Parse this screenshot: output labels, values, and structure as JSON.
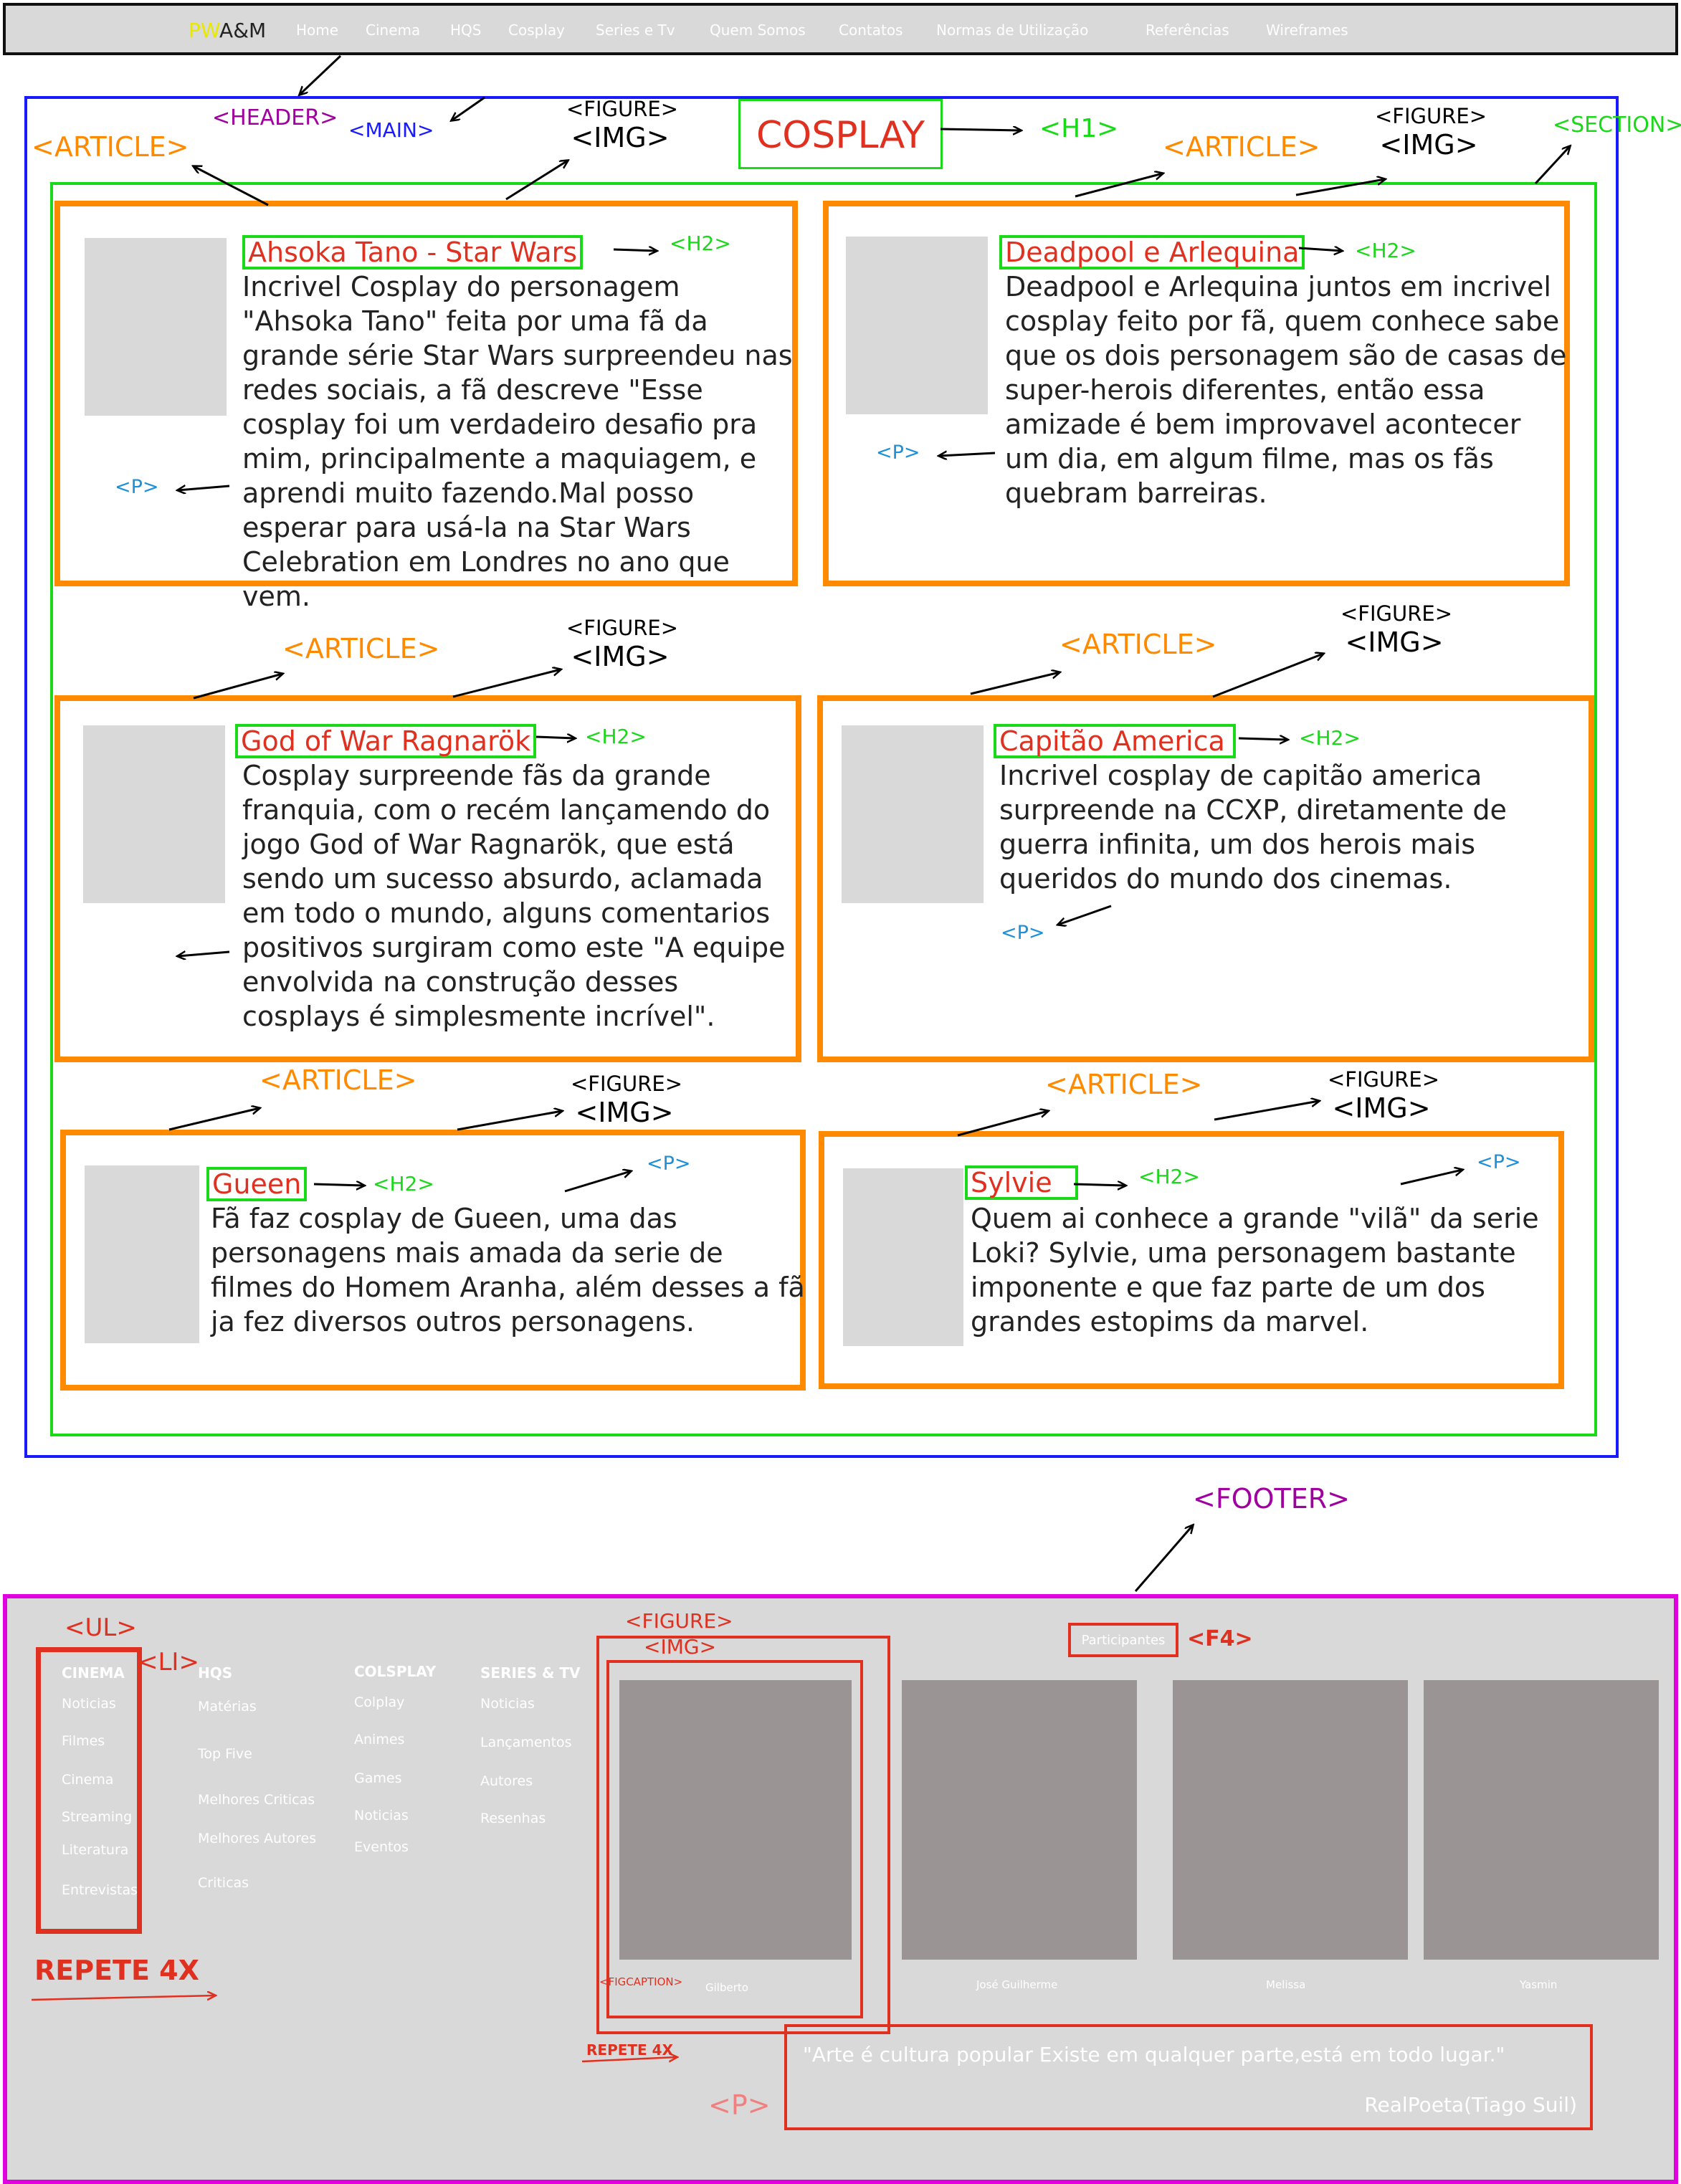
{
  "nav": {
    "brand_pw": "PW",
    "brand_rest": "A&M",
    "links": [
      "Home",
      "Cinema",
      "HQS",
      "Cosplay",
      "Series e Tv",
      "Quem Somos",
      "Contatos",
      "Normas de Utilização",
      "Referências",
      "Wireframes"
    ]
  },
  "labels": {
    "header": "<HEADER>",
    "main": "<MAIN>",
    "section": "<SECTION>",
    "h1": "<H1>",
    "article": "<ARTICLE>",
    "figure": "<FIGURE>",
    "img": "<IMG>",
    "h2": "<H2>",
    "p": "<P>",
    "footer": "<FOOTER>"
  },
  "page_title": "COSPLAY",
  "articles": [
    {
      "title": "Ahsoka Tano - Star Wars",
      "text": "Incrivel Cosplay do personagem \"Ahsoka Tano\" feita por uma fã da grande série Star Wars surpreendeu nas redes sociais, a fã descreve \"Esse cosplay foi um verdadeiro desafio pra mim, principalmente a maquiagem, e aprendi muito fazendo.Mal posso esperar para usá-la na Star Wars Celebration em Londres no ano que vem."
    },
    {
      "title": "Deadpool e Arlequina",
      "text": "Deadpool e Arlequina juntos em incrivel cosplay feito por fã, quem conhece sabe que os dois personagem são de casas de super-herois diferentes, então essa amizade é bem improvavel acontecer um dia, em algum filme, mas os fãs quebram barreiras."
    },
    {
      "title": "God of War Ragnarök",
      "text": "Cosplay surpreende fãs da grande franquia, com o recém lançamendo do jogo God of War Ragnarök, que está sendo um sucesso absurdo, aclamada em todo o mundo, alguns comentarios positivos surgiram como este \"A equipe envolvida na construção desses cosplays é simplesmente incrível\"."
    },
    {
      "title": "Capitão America",
      "text": "Incrivel cosplay de capitão america surpreende na CCXP, diretamente de guerra infinita, um dos herois mais queridos do mundo dos cinemas."
    },
    {
      "title": "Gueen",
      "text": "Fã faz cosplay de Gueen, uma das personagens mais amada da serie de filmes do Homem Aranha, além desses a fã ja fez diversos outros personagens."
    },
    {
      "title": "Sylvie",
      "text": "Quem ai conhece a grande \"vilã\" da serie Loki? Sylvie, uma personagem bastante imponente e que faz parte de um dos grandes estopims da marvel."
    }
  ],
  "footer": {
    "ul_label": "<UL>",
    "li_label": "<LI>",
    "repete_big": "REPETE 4X",
    "repete_small": "REPETE 4X",
    "figure_label": "<FIGURE>",
    "img_label": "<IMG>",
    "figcaption_label": "<FIGCAPTION>",
    "f4_label": "<F4>",
    "p_label": "<P>",
    "participants": "Participantes",
    "columns": [
      {
        "head": "CINEMA",
        "items": [
          "Noticias",
          "Filmes",
          "Cinema",
          "Streaming",
          "Literatura",
          "Entrevistas"
        ]
      },
      {
        "head": "HQS",
        "items": [
          "Matérias",
          "Top Five",
          "Melhores Criticas",
          "Melhores Autores",
          "Criticas"
        ]
      },
      {
        "head": "COLSPLAY",
        "items": [
          "Colplay",
          "Animes",
          "Games",
          "Noticias",
          "Eventos"
        ]
      },
      {
        "head": "SERIES & TV",
        "items": [
          "Noticias",
          "Lançamentos",
          "Autores",
          "Resenhas"
        ]
      }
    ],
    "people": [
      "Gilberto",
      "José Guilherme",
      "Melissa",
      "Yasmin"
    ],
    "quote": "\"Arte é cultura popular Existe em qualquer parte,está em todo lugar.\"",
    "author": "RealPoeta(Tiago Suil)"
  }
}
